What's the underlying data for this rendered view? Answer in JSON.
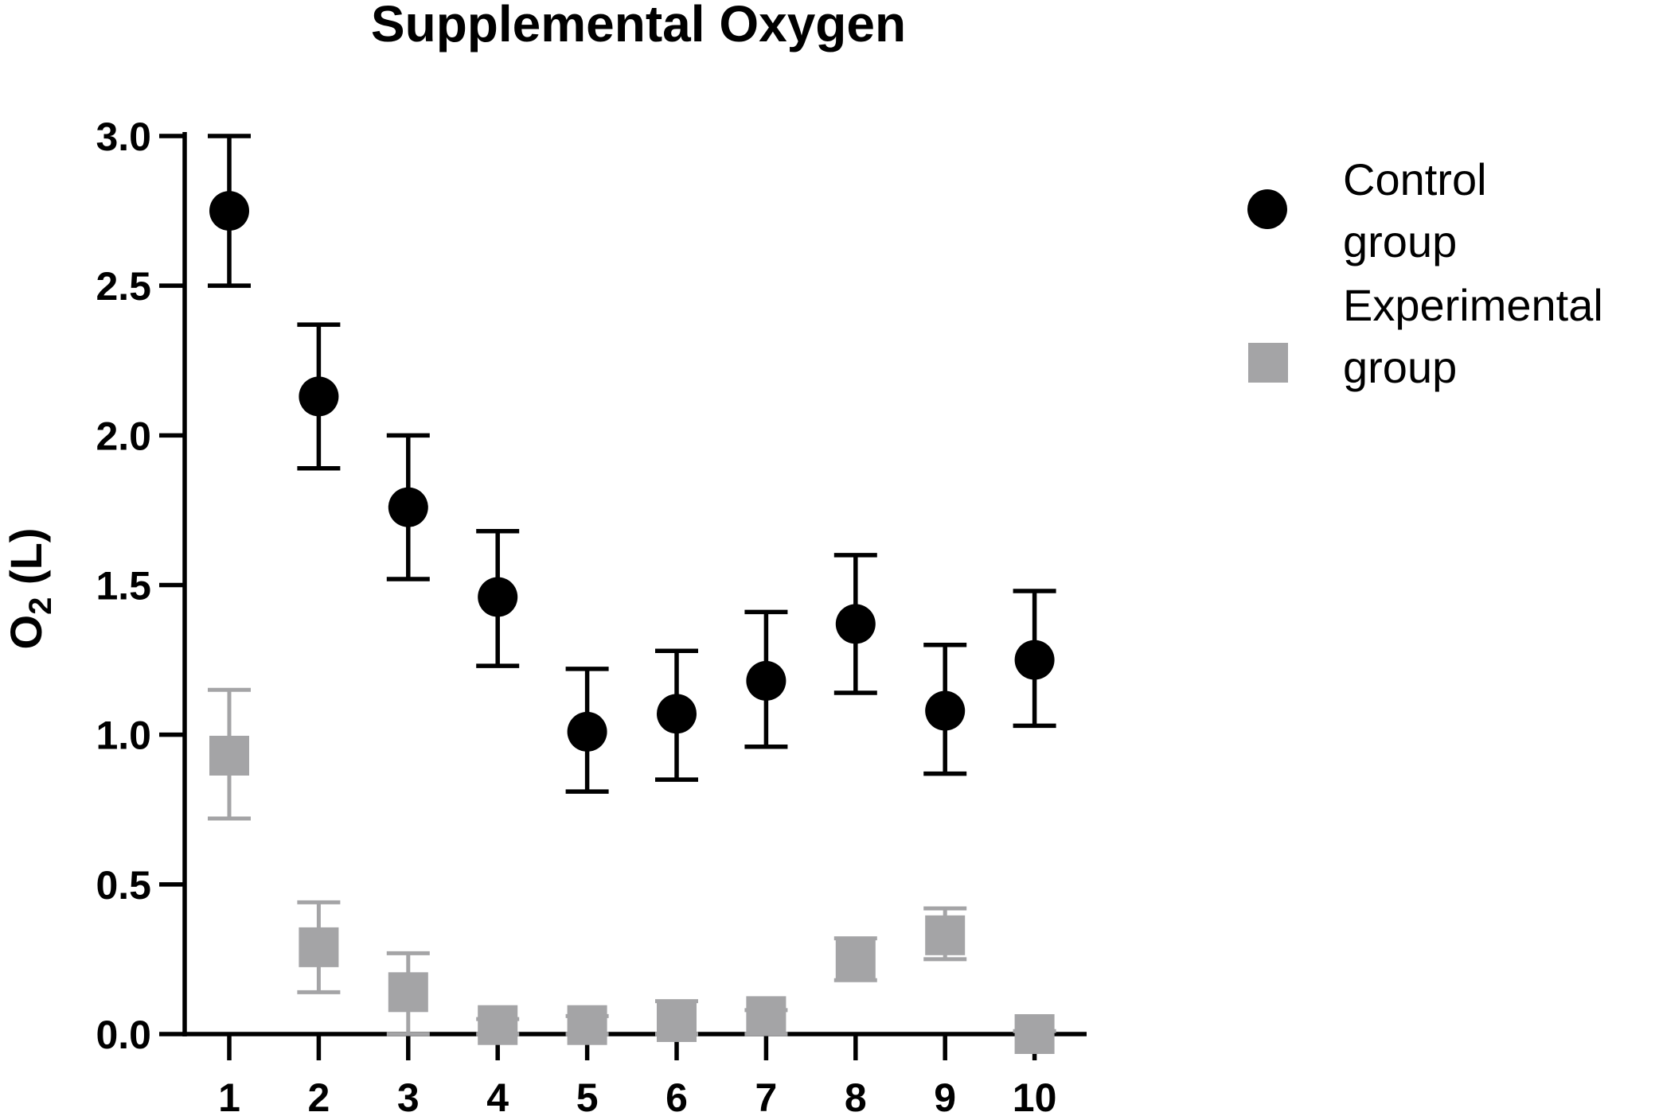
{
  "chart_data": {
    "type": "scatter",
    "title": "Supplemental Oxygen",
    "ylabel": "O₂ (L)",
    "ylabel_main": "O",
    "ylabel_sub": "2",
    "ylabel_unit": " (L)",
    "xlabel": "",
    "ylim": [
      0,
      3.0
    ],
    "yticks": [
      "0.0",
      "0.5",
      "1.0",
      "1.5",
      "2.0",
      "2.5",
      "3.0"
    ],
    "categories": [
      "1",
      "2",
      "3",
      "4",
      "5",
      "6",
      "7",
      "8",
      "9",
      "10"
    ],
    "grid": false,
    "legend_position": "right",
    "series": [
      {
        "name": "Control group",
        "legend_lines": [
          "Control",
          "group"
        ],
        "marker": "circle",
        "color": "#000000",
        "values": [
          2.75,
          2.13,
          1.76,
          1.46,
          1.01,
          1.07,
          1.18,
          1.37,
          1.08,
          1.25
        ],
        "error_low": [
          2.5,
          1.89,
          1.52,
          1.23,
          0.81,
          0.85,
          0.96,
          1.14,
          0.87,
          1.03
        ],
        "error_high": [
          3.0,
          2.37,
          2.0,
          1.68,
          1.22,
          1.28,
          1.41,
          1.6,
          1.3,
          1.48
        ]
      },
      {
        "name": "Experimental group",
        "legend_lines": [
          "Experimental",
          "group"
        ],
        "marker": "square",
        "color": "#a4a4a6",
        "values": [
          0.93,
          0.29,
          0.14,
          0.03,
          0.03,
          0.04,
          0.06,
          0.25,
          0.33,
          0.0
        ],
        "error_low": [
          0.72,
          0.14,
          0.0,
          0.0,
          0.0,
          0.0,
          0.0,
          0.18,
          0.25,
          0.0
        ],
        "error_high": [
          1.15,
          0.44,
          0.27,
          0.05,
          0.06,
          0.11,
          0.08,
          0.32,
          0.42,
          0.01
        ]
      }
    ]
  }
}
